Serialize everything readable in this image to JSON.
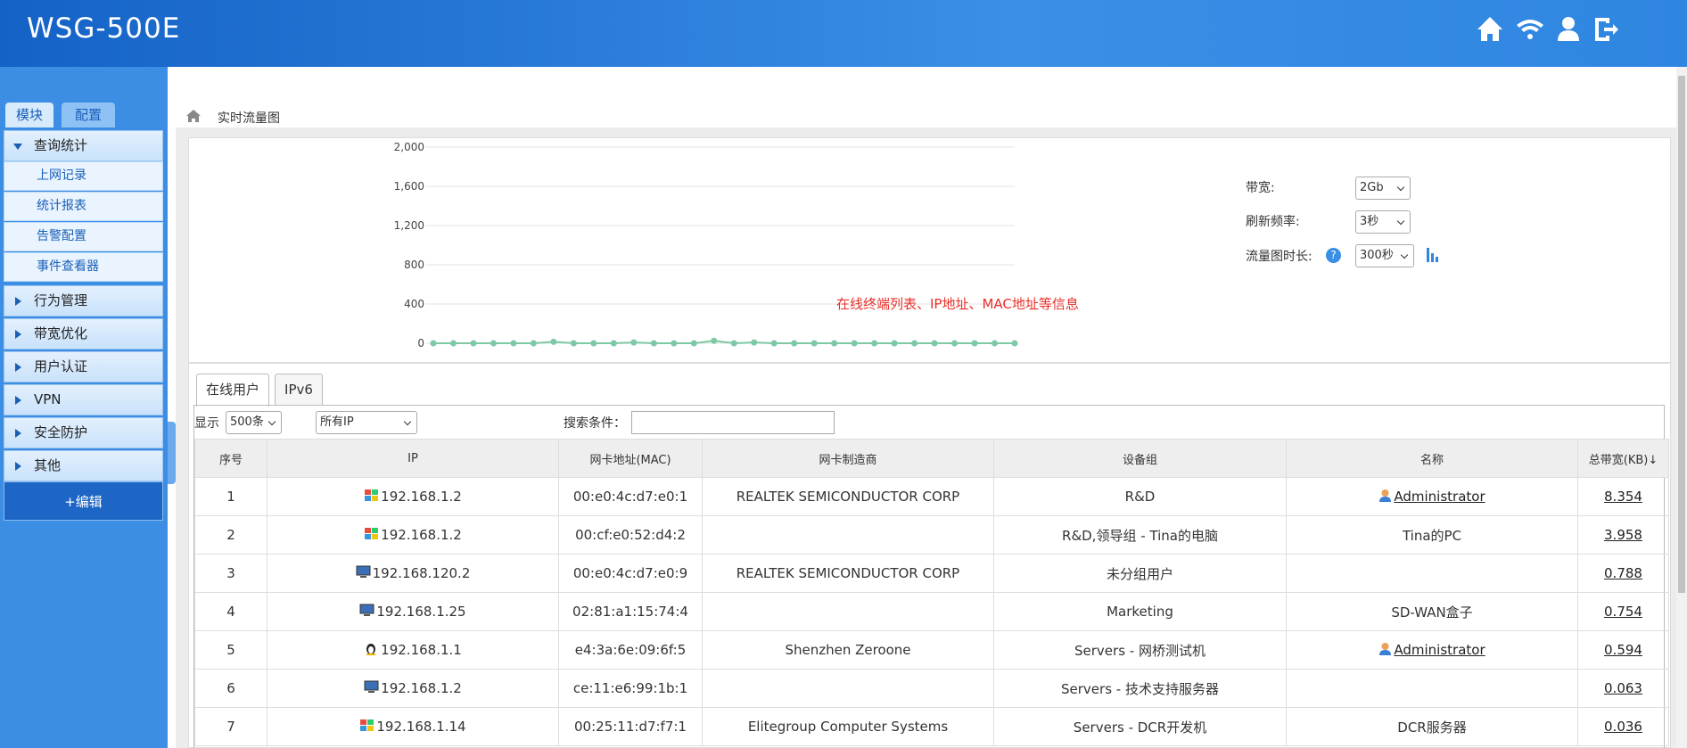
{
  "header": {
    "title": "WSG-500E"
  },
  "sidebar": {
    "tabs": [
      "模块",
      "配置"
    ],
    "menu": [
      {
        "label": "查询统计",
        "open": true,
        "children": [
          "上网记录",
          "统计报表",
          "告警配置",
          "事件查看器"
        ]
      },
      {
        "label": "行为管理"
      },
      {
        "label": "带宽优化"
      },
      {
        "label": "用户认证"
      },
      {
        "label": "VPN"
      },
      {
        "label": "安全防护"
      },
      {
        "label": "其他"
      }
    ],
    "edit": "+编辑"
  },
  "breadcrumb": "实时流量图",
  "traffic_chart": {
    "type": "line",
    "color": "#7cc9a3",
    "values": [
      0,
      0,
      0,
      0,
      0,
      0,
      15,
      0,
      0,
      0,
      8,
      0,
      0,
      0,
      25,
      0,
      8,
      0,
      0,
      0,
      0,
      0,
      0,
      0,
      0,
      0,
      0,
      0,
      0,
      0
    ],
    "ylim": [
      0,
      2000
    ],
    "yticks": [
      0,
      400,
      800,
      {
        "value": 1200,
        "label": "1,200"
      },
      {
        "value": 1600,
        "label": "1,600"
      },
      {
        "value": 2000,
        "label": "2,000"
      }
    ],
    "grid": true,
    "annotation": "在线终端列表、IP地址、MAC地址等信息"
  },
  "settings": {
    "bandwidth": {
      "label": "带宽:",
      "value": "2Gb"
    },
    "refresh": {
      "label": "刷新频率:",
      "value": "3秒"
    },
    "duration": {
      "label": "流量图时长:",
      "value": "300秒"
    }
  },
  "tabs": [
    "在线用户",
    "IPv6"
  ],
  "filters": {
    "show_label": "显示",
    "show": "500条",
    "ip": "所有IP",
    "search_label": "搜索条件："
  },
  "table": {
    "columns": [
      "序号",
      "IP",
      "网卡地址(MAC)",
      "网卡制造商",
      "设备组",
      "名称",
      "总带宽(KB)↓"
    ],
    "rows": [
      {
        "no": "1",
        "icon": "windows",
        "ip": "192.168.1.2",
        "mac": "00:e0:4c:d7:e0:1",
        "vendor": "REALTEK SEMICONDUCTOR CORP",
        "group": "R&D",
        "name": "Administrator",
        "user_icon": true,
        "bandwidth": "8.354"
      },
      {
        "no": "2",
        "icon": "windows",
        "ip": "192.168.1.2",
        "mac": "00:cf:e0:52:d4:2",
        "group": "R&D,领导组 - Tina的电脑",
        "name": "Tina的PC",
        "bandwidth": "3.958"
      },
      {
        "no": "3",
        "icon": "monitor",
        "ip": "192.168.120.2",
        "mac": "00:e0:4c:d7:e0:9",
        "vendor": "REALTEK SEMICONDUCTOR CORP",
        "group": "未分组用户",
        "bandwidth": "0.788"
      },
      {
        "no": "4",
        "icon": "monitor",
        "ip": "192.168.1.25",
        "mac": "02:81:a1:15:74:4",
        "group": "Marketing",
        "name": "SD-WAN盒子",
        "bandwidth": "0.754"
      },
      {
        "no": "5",
        "icon": "linux",
        "ip": "192.168.1.1",
        "mac": "e4:3a:6e:09:6f:5",
        "vendor": "Shenzhen Zeroone",
        "group": "Servers - 网桥测试机",
        "name": "Administrator",
        "user_icon": true,
        "bandwidth": "0.594"
      },
      {
        "no": "6",
        "icon": "monitor",
        "ip": "192.168.1.2",
        "mac": "ce:11:e6:99:1b:1",
        "group": "Servers - 技术支持服务器",
        "bandwidth": "0.063"
      },
      {
        "no": "7",
        "icon": "windows",
        "ip": "192.168.1.14",
        "mac": "00:25:11:d7:f7:1",
        "vendor": "Elitegroup Computer Systems",
        "group": "Servers - DCR开发机",
        "name": "DCR服务器",
        "bandwidth": "0.036"
      }
    ]
  }
}
